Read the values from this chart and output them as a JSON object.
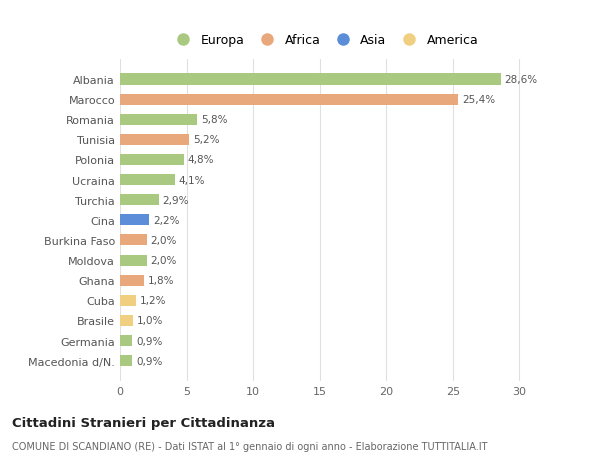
{
  "countries": [
    "Albania",
    "Marocco",
    "Romania",
    "Tunisia",
    "Polonia",
    "Ucraina",
    "Turchia",
    "Cina",
    "Burkina Faso",
    "Moldova",
    "Ghana",
    "Cuba",
    "Brasile",
    "Germania",
    "Macedonia d/N."
  ],
  "values": [
    28.6,
    25.4,
    5.8,
    5.2,
    4.8,
    4.1,
    2.9,
    2.2,
    2.0,
    2.0,
    1.8,
    1.2,
    1.0,
    0.9,
    0.9
  ],
  "labels": [
    "28,6%",
    "25,4%",
    "5,8%",
    "5,2%",
    "4,8%",
    "4,1%",
    "2,9%",
    "2,2%",
    "2,0%",
    "2,0%",
    "1,8%",
    "1,2%",
    "1,0%",
    "0,9%",
    "0,9%"
  ],
  "regions": [
    "Europa",
    "Africa",
    "Europa",
    "Africa",
    "Europa",
    "Europa",
    "Europa",
    "Asia",
    "Africa",
    "Europa",
    "Africa",
    "America",
    "America",
    "Europa",
    "Europa"
  ],
  "colors": {
    "Europa": "#a8c97f",
    "Africa": "#e8a87c",
    "Asia": "#5b8dd9",
    "America": "#f0d080"
  },
  "legend_order": [
    "Europa",
    "Africa",
    "Asia",
    "America"
  ],
  "xlim": [
    0,
    32
  ],
  "xticks": [
    0,
    5,
    10,
    15,
    20,
    25,
    30
  ],
  "title": "Cittadini Stranieri per Cittadinanza",
  "subtitle": "COMUNE DI SCANDIANO (RE) - Dati ISTAT al 1° gennaio di ogni anno - Elaborazione TUTTITALIA.IT",
  "background_color": "#ffffff",
  "bar_height": 0.55,
  "grid_color": "#e0e0e0"
}
